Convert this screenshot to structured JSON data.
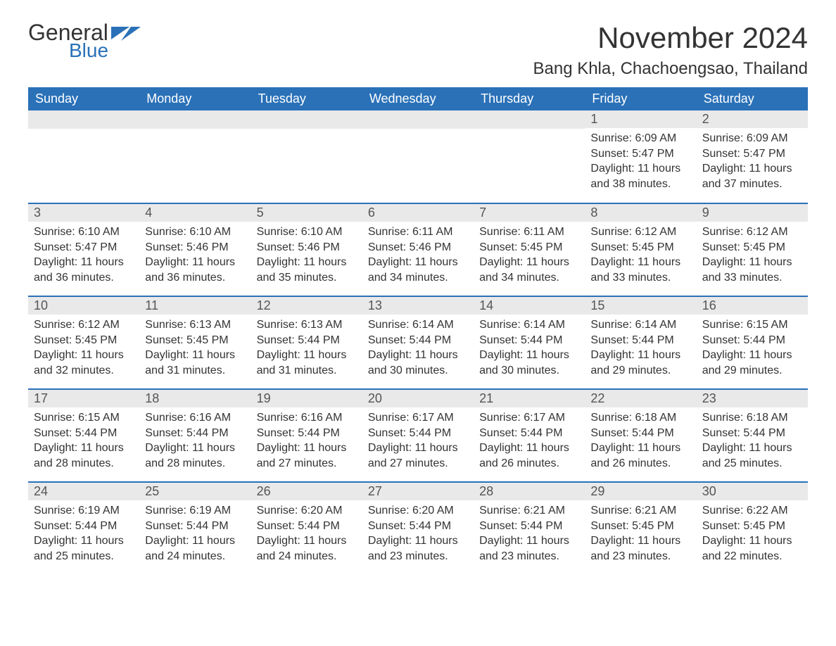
{
  "logo": {
    "word1": "General",
    "word2": "Blue",
    "icon_color": "#2a71b8",
    "text_color_primary": "#333333",
    "text_color_accent": "#2a71b8"
  },
  "title": {
    "month_year": "November 2024",
    "location": "Bang Khla, Chachoengsao, Thailand"
  },
  "style": {
    "header_bg": "#2a71b8",
    "header_text": "#ffffff",
    "daynum_bg": "#e9e9e9",
    "daynum_text": "#555555",
    "body_text": "#333333",
    "row_border": "#2a71b8",
    "page_bg": "#ffffff",
    "title_fontsize": 42,
    "location_fontsize": 24,
    "header_fontsize": 18,
    "daynum_fontsize": 18,
    "body_fontsize": 16
  },
  "weekdays": [
    "Sunday",
    "Monday",
    "Tuesday",
    "Wednesday",
    "Thursday",
    "Friday",
    "Saturday"
  ],
  "weeks": [
    [
      null,
      null,
      null,
      null,
      null,
      {
        "n": "1",
        "sunrise": "Sunrise: 6:09 AM",
        "sunset": "Sunset: 5:47 PM",
        "daylight": "Daylight: 11 hours and 38 minutes."
      },
      {
        "n": "2",
        "sunrise": "Sunrise: 6:09 AM",
        "sunset": "Sunset: 5:47 PM",
        "daylight": "Daylight: 11 hours and 37 minutes."
      }
    ],
    [
      {
        "n": "3",
        "sunrise": "Sunrise: 6:10 AM",
        "sunset": "Sunset: 5:47 PM",
        "daylight": "Daylight: 11 hours and 36 minutes."
      },
      {
        "n": "4",
        "sunrise": "Sunrise: 6:10 AM",
        "sunset": "Sunset: 5:46 PM",
        "daylight": "Daylight: 11 hours and 36 minutes."
      },
      {
        "n": "5",
        "sunrise": "Sunrise: 6:10 AM",
        "sunset": "Sunset: 5:46 PM",
        "daylight": "Daylight: 11 hours and 35 minutes."
      },
      {
        "n": "6",
        "sunrise": "Sunrise: 6:11 AM",
        "sunset": "Sunset: 5:46 PM",
        "daylight": "Daylight: 11 hours and 34 minutes."
      },
      {
        "n": "7",
        "sunrise": "Sunrise: 6:11 AM",
        "sunset": "Sunset: 5:45 PM",
        "daylight": "Daylight: 11 hours and 34 minutes."
      },
      {
        "n": "8",
        "sunrise": "Sunrise: 6:12 AM",
        "sunset": "Sunset: 5:45 PM",
        "daylight": "Daylight: 11 hours and 33 minutes."
      },
      {
        "n": "9",
        "sunrise": "Sunrise: 6:12 AM",
        "sunset": "Sunset: 5:45 PM",
        "daylight": "Daylight: 11 hours and 33 minutes."
      }
    ],
    [
      {
        "n": "10",
        "sunrise": "Sunrise: 6:12 AM",
        "sunset": "Sunset: 5:45 PM",
        "daylight": "Daylight: 11 hours and 32 minutes."
      },
      {
        "n": "11",
        "sunrise": "Sunrise: 6:13 AM",
        "sunset": "Sunset: 5:45 PM",
        "daylight": "Daylight: 11 hours and 31 minutes."
      },
      {
        "n": "12",
        "sunrise": "Sunrise: 6:13 AM",
        "sunset": "Sunset: 5:44 PM",
        "daylight": "Daylight: 11 hours and 31 minutes."
      },
      {
        "n": "13",
        "sunrise": "Sunrise: 6:14 AM",
        "sunset": "Sunset: 5:44 PM",
        "daylight": "Daylight: 11 hours and 30 minutes."
      },
      {
        "n": "14",
        "sunrise": "Sunrise: 6:14 AM",
        "sunset": "Sunset: 5:44 PM",
        "daylight": "Daylight: 11 hours and 30 minutes."
      },
      {
        "n": "15",
        "sunrise": "Sunrise: 6:14 AM",
        "sunset": "Sunset: 5:44 PM",
        "daylight": "Daylight: 11 hours and 29 minutes."
      },
      {
        "n": "16",
        "sunrise": "Sunrise: 6:15 AM",
        "sunset": "Sunset: 5:44 PM",
        "daylight": "Daylight: 11 hours and 29 minutes."
      }
    ],
    [
      {
        "n": "17",
        "sunrise": "Sunrise: 6:15 AM",
        "sunset": "Sunset: 5:44 PM",
        "daylight": "Daylight: 11 hours and 28 minutes."
      },
      {
        "n": "18",
        "sunrise": "Sunrise: 6:16 AM",
        "sunset": "Sunset: 5:44 PM",
        "daylight": "Daylight: 11 hours and 28 minutes."
      },
      {
        "n": "19",
        "sunrise": "Sunrise: 6:16 AM",
        "sunset": "Sunset: 5:44 PM",
        "daylight": "Daylight: 11 hours and 27 minutes."
      },
      {
        "n": "20",
        "sunrise": "Sunrise: 6:17 AM",
        "sunset": "Sunset: 5:44 PM",
        "daylight": "Daylight: 11 hours and 27 minutes."
      },
      {
        "n": "21",
        "sunrise": "Sunrise: 6:17 AM",
        "sunset": "Sunset: 5:44 PM",
        "daylight": "Daylight: 11 hours and 26 minutes."
      },
      {
        "n": "22",
        "sunrise": "Sunrise: 6:18 AM",
        "sunset": "Sunset: 5:44 PM",
        "daylight": "Daylight: 11 hours and 26 minutes."
      },
      {
        "n": "23",
        "sunrise": "Sunrise: 6:18 AM",
        "sunset": "Sunset: 5:44 PM",
        "daylight": "Daylight: 11 hours and 25 minutes."
      }
    ],
    [
      {
        "n": "24",
        "sunrise": "Sunrise: 6:19 AM",
        "sunset": "Sunset: 5:44 PM",
        "daylight": "Daylight: 11 hours and 25 minutes."
      },
      {
        "n": "25",
        "sunrise": "Sunrise: 6:19 AM",
        "sunset": "Sunset: 5:44 PM",
        "daylight": "Daylight: 11 hours and 24 minutes."
      },
      {
        "n": "26",
        "sunrise": "Sunrise: 6:20 AM",
        "sunset": "Sunset: 5:44 PM",
        "daylight": "Daylight: 11 hours and 24 minutes."
      },
      {
        "n": "27",
        "sunrise": "Sunrise: 6:20 AM",
        "sunset": "Sunset: 5:44 PM",
        "daylight": "Daylight: 11 hours and 23 minutes."
      },
      {
        "n": "28",
        "sunrise": "Sunrise: 6:21 AM",
        "sunset": "Sunset: 5:44 PM",
        "daylight": "Daylight: 11 hours and 23 minutes."
      },
      {
        "n": "29",
        "sunrise": "Sunrise: 6:21 AM",
        "sunset": "Sunset: 5:45 PM",
        "daylight": "Daylight: 11 hours and 23 minutes."
      },
      {
        "n": "30",
        "sunrise": "Sunrise: 6:22 AM",
        "sunset": "Sunset: 5:45 PM",
        "daylight": "Daylight: 11 hours and 22 minutes."
      }
    ]
  ]
}
